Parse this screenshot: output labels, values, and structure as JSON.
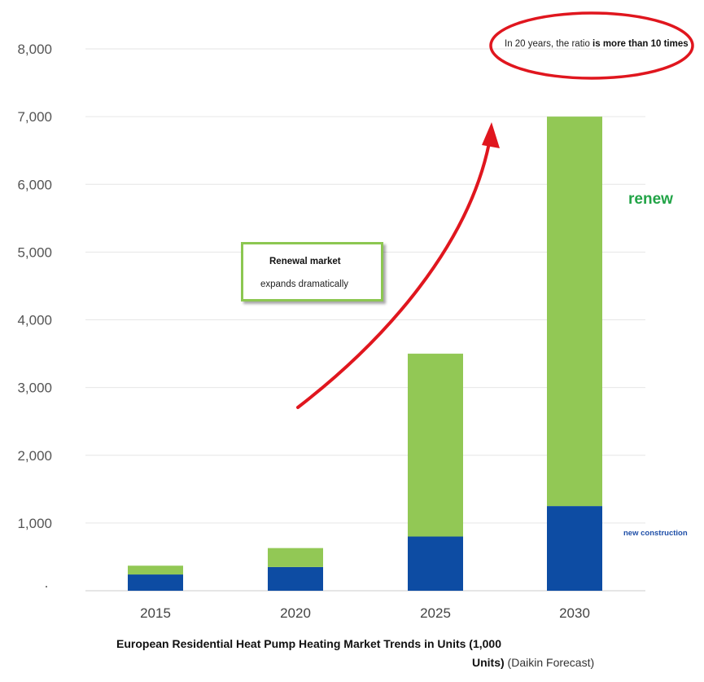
{
  "chart_data": {
    "type": "bar",
    "stacked": true,
    "categories": [
      "2015",
      "2020",
      "2025",
      "2030"
    ],
    "series": [
      {
        "name": "new construction",
        "color": "#0d4ca3",
        "values": [
          240,
          350,
          800,
          1250
        ]
      },
      {
        "name": "renew",
        "color": "#92c855",
        "values": [
          130,
          280,
          2700,
          5750
        ]
      }
    ],
    "ylim": [
      0,
      8000
    ],
    "yticks": [
      "",
      "1,000",
      "2,000",
      "3,000",
      "4,000",
      "5,000",
      "6,000",
      "7,000",
      "8,000"
    ],
    "ytick_values": [
      0,
      1000,
      2000,
      3000,
      4000,
      5000,
      6000,
      7000,
      8000
    ],
    "grid": true,
    "legend": "inline-right",
    "caption": {
      "line1": "European Residential Heat Pump Heating Market Trends in Units (1,000",
      "line2_bold": "Units)",
      "line2_rest": " (Daikin Forecast)"
    },
    "annotations": {
      "ratio_prefix": "In 20 years, the ratio ",
      "ratio_bold": "is more than 10 times",
      "renewal_title": "Renewal market",
      "renewal_sub": "expands dramatically"
    },
    "colors": {
      "arrow": "#e0161e",
      "ellipse": "#e0161e",
      "renew_label": "#22a447",
      "newc_label": "#1f4fa8",
      "box_border": "#8cc751"
    }
  }
}
